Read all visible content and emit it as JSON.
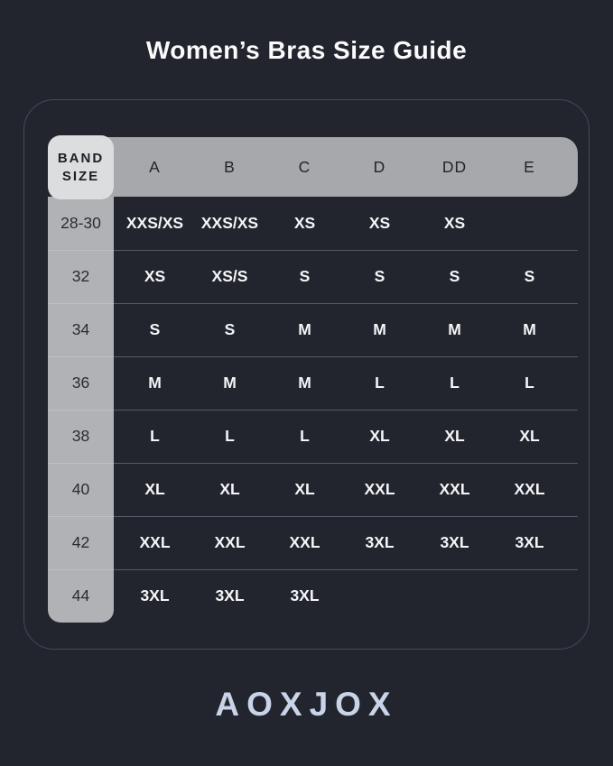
{
  "title": "Women’s Bras Size Guide",
  "brand": "AOXJOX",
  "table": {
    "corner_label": {
      "line1": "BAND",
      "line2": "SIZE"
    },
    "cup_columns": [
      "A",
      "B",
      "C",
      "D",
      "DD",
      "E"
    ],
    "rows": [
      {
        "band": "28-30",
        "values": [
          "XXS/XS",
          "XXS/XS",
          "XS",
          "XS",
          "XS",
          ""
        ]
      },
      {
        "band": "32",
        "values": [
          "XS",
          "XS/S",
          "S",
          "S",
          "S",
          "S"
        ]
      },
      {
        "band": "34",
        "values": [
          "S",
          "S",
          "M",
          "M",
          "M",
          "M"
        ]
      },
      {
        "band": "36",
        "values": [
          "M",
          "M",
          "M",
          "L",
          "L",
          "L"
        ]
      },
      {
        "band": "38",
        "values": [
          "L",
          "L",
          "L",
          "XL",
          "XL",
          "XL"
        ]
      },
      {
        "band": "40",
        "values": [
          "XL",
          "XL",
          "XL",
          "XXL",
          "XXL",
          "XXL"
        ]
      },
      {
        "band": "42",
        "values": [
          "XXL",
          "XXL",
          "XXL",
          "3XL",
          "3XL",
          "3XL"
        ]
      },
      {
        "band": "44",
        "values": [
          "3XL",
          "3XL",
          "3XL",
          "",
          "",
          ""
        ]
      }
    ]
  },
  "colors": {
    "background": "#23252e",
    "header_band": "#a7a8ac",
    "corner_cell": "#dcddde",
    "band_column": "#b1b2b6",
    "dark_text": "#20222a",
    "value_text": "#f4f5f7",
    "brand_text": "#c9d4e9",
    "frame_border": "#464a55",
    "row_divider": "#4a4e5a"
  }
}
